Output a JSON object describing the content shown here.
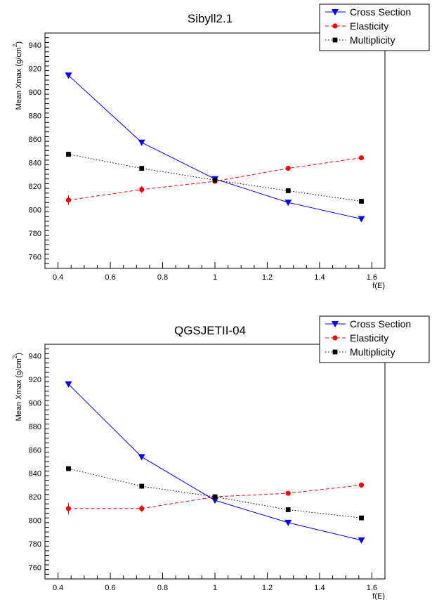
{
  "chart_data": [
    {
      "type": "line",
      "title": "Sibyll2.1",
      "xlabel": "f(E)",
      "ylabel": "Mean Xmax (g/cm",
      "ylabel_sup": "2",
      "ylabel_close": ")",
      "xlim": [
        0.35,
        1.65
      ],
      "ylim": [
        750,
        950
      ],
      "xticks": [
        "0.4",
        "0.6",
        "0.8",
        "1",
        "1.2",
        "1.4",
        "1.6"
      ],
      "yticks": [
        "760",
        "780",
        "800",
        "820",
        "840",
        "860",
        "880",
        "900",
        "920",
        "940"
      ],
      "grid": false,
      "legend_position": "top-right",
      "series": [
        {
          "name": "Cross Section",
          "color": "#0000ff",
          "marker": "triangle-down",
          "line": "solid",
          "x": [
            0.44,
            0.72,
            1.0,
            1.28,
            1.56
          ],
          "y": [
            914,
            857,
            826,
            806,
            792
          ]
        },
        {
          "name": "Elasticity",
          "color": "#ff0000",
          "marker": "circle",
          "line": "dashed",
          "x": [
            0.44,
            0.72,
            1.0,
            1.28,
            1.56
          ],
          "y": [
            808,
            817,
            824,
            835,
            844
          ],
          "yerr": [
            4,
            3,
            2,
            1,
            1
          ]
        },
        {
          "name": "Multiplicity",
          "color": "#000000",
          "marker": "square",
          "line": "dotted",
          "x": [
            0.44,
            0.72,
            1.0,
            1.28,
            1.56
          ],
          "y": [
            847,
            835,
            825,
            816,
            807
          ]
        }
      ]
    },
    {
      "type": "line",
      "title": "QGSJETII-04",
      "xlabel": "f(E)",
      "ylabel": "Mean Xmax (g/cm",
      "ylabel_sup": "2",
      "ylabel_close": ")",
      "xlim": [
        0.35,
        1.65
      ],
      "ylim": [
        750,
        950
      ],
      "xticks": [
        "0.4",
        "0.6",
        "0.8",
        "1",
        "1.2",
        "1.4",
        "1.6"
      ],
      "yticks": [
        "760",
        "780",
        "800",
        "820",
        "840",
        "860",
        "880",
        "900",
        "920",
        "940"
      ],
      "grid": false,
      "legend_position": "top-right",
      "series": [
        {
          "name": "Cross Section",
          "color": "#0000ff",
          "marker": "triangle-down",
          "line": "solid",
          "x": [
            0.44,
            0.72,
            1.0,
            1.28,
            1.56
          ],
          "y": [
            916,
            854,
            817,
            798,
            783
          ]
        },
        {
          "name": "Elasticity",
          "color": "#ff0000",
          "marker": "circle",
          "line": "dashed",
          "x": [
            0.44,
            0.72,
            1.0,
            1.28,
            1.56
          ],
          "y": [
            810,
            810,
            820,
            823,
            830
          ],
          "yerr": [
            5,
            3,
            2,
            1,
            1
          ]
        },
        {
          "name": "Multiplicity",
          "color": "#000000",
          "marker": "square",
          "line": "dotted",
          "x": [
            0.44,
            0.72,
            1.0,
            1.28,
            1.56
          ],
          "y": [
            844,
            829,
            820,
            809,
            802
          ]
        }
      ]
    }
  ]
}
